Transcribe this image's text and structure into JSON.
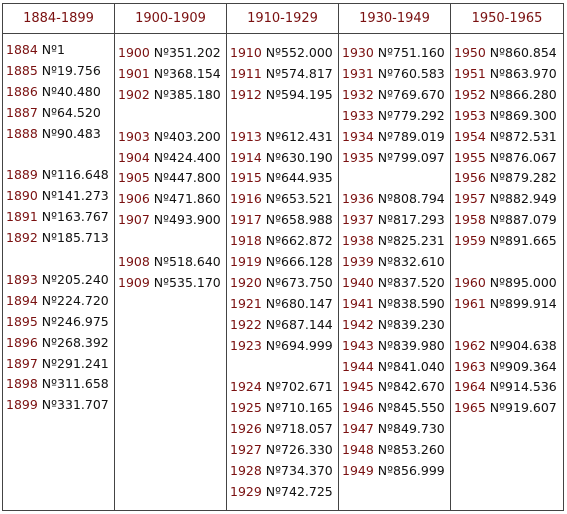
{
  "columns": [
    {
      "header": "1884-1899",
      "rows": [
        {
          "year": "1884",
          "number": "Nº1",
          "slot": 0
        },
        {
          "year": "1885",
          "number": "Nº19.756",
          "slot": 1
        },
        {
          "year": "1886",
          "number": "Nº40.480",
          "slot": 2
        },
        {
          "year": "1887",
          "number": "Nº64.520",
          "slot": 3
        },
        {
          "year": "1888",
          "number": "Nº90.483",
          "slot": 4
        },
        {
          "year": "1889",
          "number": "Nº116.648",
          "slot": 6
        },
        {
          "year": "1890",
          "number": "Nº141.273",
          "slot": 7
        },
        {
          "year": "1891",
          "number": "Nº163.767",
          "slot": 8
        },
        {
          "year": "1892",
          "number": "Nº185.713",
          "slot": 9
        },
        {
          "year": "1893",
          "number": "Nº205.240",
          "slot": 11
        },
        {
          "year": "1894",
          "number": "Nº224.720",
          "slot": 12
        },
        {
          "year": "1895",
          "number": "Nº246.975",
          "slot": 13
        },
        {
          "year": "1896",
          "number": "Nº268.392",
          "slot": 14
        },
        {
          "year": "1897",
          "number": "Nº291.241",
          "slot": 15
        },
        {
          "year": "1898",
          "number": "Nº311.658",
          "slot": 16
        },
        {
          "year": "1899",
          "number": "Nº331.707",
          "slot": 17
        }
      ]
    },
    {
      "header": "1900-1909",
      "rows": [
        {
          "year": "1900",
          "number": "Nº351.202",
          "slot": 0
        },
        {
          "year": "1901",
          "number": "Nº368.154",
          "slot": 1
        },
        {
          "year": "1902",
          "number": "Nº385.180",
          "slot": 2
        },
        {
          "year": "1903",
          "number": "Nº403.200",
          "slot": 4
        },
        {
          "year": "1904",
          "number": "Nº424.400",
          "slot": 5
        },
        {
          "year": "1905",
          "number": "Nº447.800",
          "slot": 6
        },
        {
          "year": "1906",
          "number": "Nº471.860",
          "slot": 7
        },
        {
          "year": "1907",
          "number": "Nº493.900",
          "slot": 8
        },
        {
          "year": "1908",
          "number": "Nº518.640",
          "slot": 10
        },
        {
          "year": "1909",
          "number": "Nº535.170",
          "slot": 11
        }
      ]
    },
    {
      "header": "1910-1929",
      "rows": [
        {
          "year": "1910",
          "number": "Nº552.000",
          "slot": 0
        },
        {
          "year": "1911",
          "number": "Nº574.817",
          "slot": 1
        },
        {
          "year": "1912",
          "number": "Nº594.195",
          "slot": 2
        },
        {
          "year": "1913",
          "number": "Nº612.431",
          "slot": 4
        },
        {
          "year": "1914",
          "number": "Nº630.190",
          "slot": 5
        },
        {
          "year": "1915",
          "number": "Nº644.935",
          "slot": 6
        },
        {
          "year": "1916",
          "number": "Nº653.521",
          "slot": 7
        },
        {
          "year": "1917",
          "number": "Nº658.988",
          "slot": 8
        },
        {
          "year": "1918",
          "number": "Nº662.872",
          "slot": 9
        },
        {
          "year": "1919",
          "number": "Nº666.128",
          "slot": 10
        },
        {
          "year": "1920",
          "number": "Nº673.750",
          "slot": 11
        },
        {
          "year": "1921",
          "number": "Nº680.147",
          "slot": 12
        },
        {
          "year": "1922",
          "number": "Nº687.144",
          "slot": 13
        },
        {
          "year": "1923",
          "number": "Nº694.999",
          "slot": 14
        },
        {
          "year": "1924",
          "number": "Nº702.671",
          "slot": 16
        },
        {
          "year": "1925",
          "number": "Nº710.165",
          "slot": 17
        },
        {
          "year": "1926",
          "number": "Nº718.057",
          "slot": 18
        },
        {
          "year": "1927",
          "number": "Nº726.330",
          "slot": 19
        },
        {
          "year": "1928",
          "number": "Nº734.370",
          "slot": 20
        },
        {
          "year": "1929",
          "number": "Nº742.725",
          "slot": 21
        }
      ]
    },
    {
      "header": "1930-1949",
      "rows": [
        {
          "year": "1930",
          "number": "Nº751.160",
          "slot": 0
        },
        {
          "year": "1931",
          "number": "Nº760.583",
          "slot": 1
        },
        {
          "year": "1932",
          "number": "Nº769.670",
          "slot": 2
        },
        {
          "year": "1933",
          "number": "Nº779.292",
          "slot": 3
        },
        {
          "year": "1934",
          "number": "Nº789.019",
          "slot": 4
        },
        {
          "year": "1935",
          "number": "Nº799.097",
          "slot": 5
        },
        {
          "year": "1936",
          "number": "Nº808.794",
          "slot": 7
        },
        {
          "year": "1937",
          "number": "Nº817.293",
          "slot": 8
        },
        {
          "year": "1938",
          "number": "Nº825.231",
          "slot": 9
        },
        {
          "year": "1939",
          "number": "Nº832.610",
          "slot": 10
        },
        {
          "year": "1940",
          "number": "Nº837.520",
          "slot": 11
        },
        {
          "year": "1941",
          "number": "Nº838.590",
          "slot": 12
        },
        {
          "year": "1942",
          "number": "Nº839.230",
          "slot": 13
        },
        {
          "year": "1943",
          "number": "Nº839.980",
          "slot": 14
        },
        {
          "year": "1944",
          "number": "Nº841.040",
          "slot": 15
        },
        {
          "year": "1945",
          "number": "Nº842.670",
          "slot": 16
        },
        {
          "year": "1946",
          "number": "Nº845.550",
          "slot": 17
        },
        {
          "year": "1947",
          "number": "Nº849.730",
          "slot": 18
        },
        {
          "year": "1948",
          "number": "Nº853.260",
          "slot": 19
        },
        {
          "year": "1949",
          "number": "Nº856.999",
          "slot": 20
        }
      ]
    },
    {
      "header": "1950-1965",
      "rows": [
        {
          "year": "1950",
          "number": "Nº860.854",
          "slot": 0
        },
        {
          "year": "1951",
          "number": "Nº863.970",
          "slot": 1
        },
        {
          "year": "1952",
          "number": "Nº866.280",
          "slot": 2
        },
        {
          "year": "1953",
          "number": "Nº869.300",
          "slot": 3
        },
        {
          "year": "1954",
          "number": "Nº872.531",
          "slot": 4
        },
        {
          "year": "1955",
          "number": "Nº876.067",
          "slot": 5
        },
        {
          "year": "1956",
          "number": "Nº879.282",
          "slot": 6
        },
        {
          "year": "1957",
          "number": "Nº882.949",
          "slot": 7
        },
        {
          "year": "1958",
          "number": "Nº887.079",
          "slot": 8
        },
        {
          "year": "1959",
          "number": "Nº891.665",
          "slot": 9
        },
        {
          "year": "1960",
          "number": "Nº895.000",
          "slot": 11
        },
        {
          "year": "1961",
          "number": "Nº899.914",
          "slot": 12
        },
        {
          "year": "1962",
          "number": "Nº904.638",
          "slot": 14
        },
        {
          "year": "1963",
          "number": "Nº909.364",
          "slot": 15
        },
        {
          "year": "1964",
          "number": "Nº914.536",
          "slot": 16
        },
        {
          "year": "1965",
          "number": "Nº919.607",
          "slot": 17
        }
      ]
    }
  ]
}
